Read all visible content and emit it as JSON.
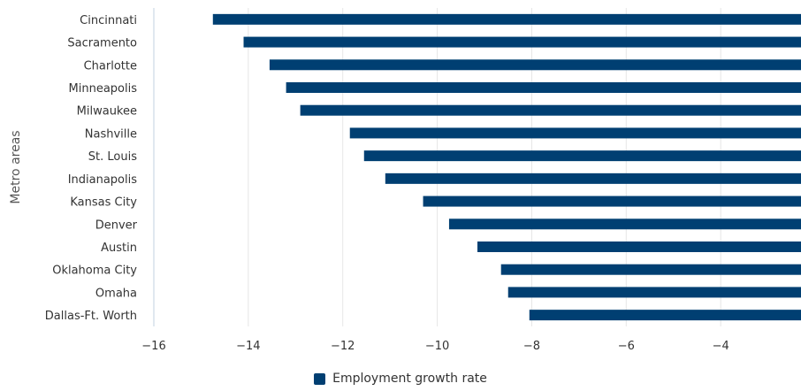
{
  "chart_data": {
    "type": "bar",
    "orientation": "horizontal",
    "categories": [
      "Cincinnati",
      "Sacramento",
      "Charlotte",
      "Minneapolis",
      "Milwaukee",
      "Nashville",
      "St. Louis",
      "Indianapolis",
      "Kansas City",
      "Denver",
      "Austin",
      "Oklahoma City",
      "Omaha",
      "Dallas-Ft. Worth"
    ],
    "series": [
      {
        "name": "Employment growth rate",
        "color": "#003f72",
        "values": [
          -14.75,
          -14.1,
          -13.55,
          -13.2,
          -12.9,
          -11.85,
          -11.55,
          -11.1,
          -10.3,
          -9.75,
          -9.15,
          -8.65,
          -8.5,
          -8.05
        ]
      }
    ],
    "ylabel": "Metro areas",
    "xlabel": "",
    "xlim": [
      -16,
      -2.3
    ],
    "xticks": [
      -16,
      -14,
      -12,
      -10,
      -8,
      -6,
      -4
    ],
    "xtick_labels": [
      "−16",
      "−14",
      "−12",
      "−10",
      "−8",
      "−6",
      "−4"
    ],
    "grid": true,
    "legend_position": "bottom"
  }
}
